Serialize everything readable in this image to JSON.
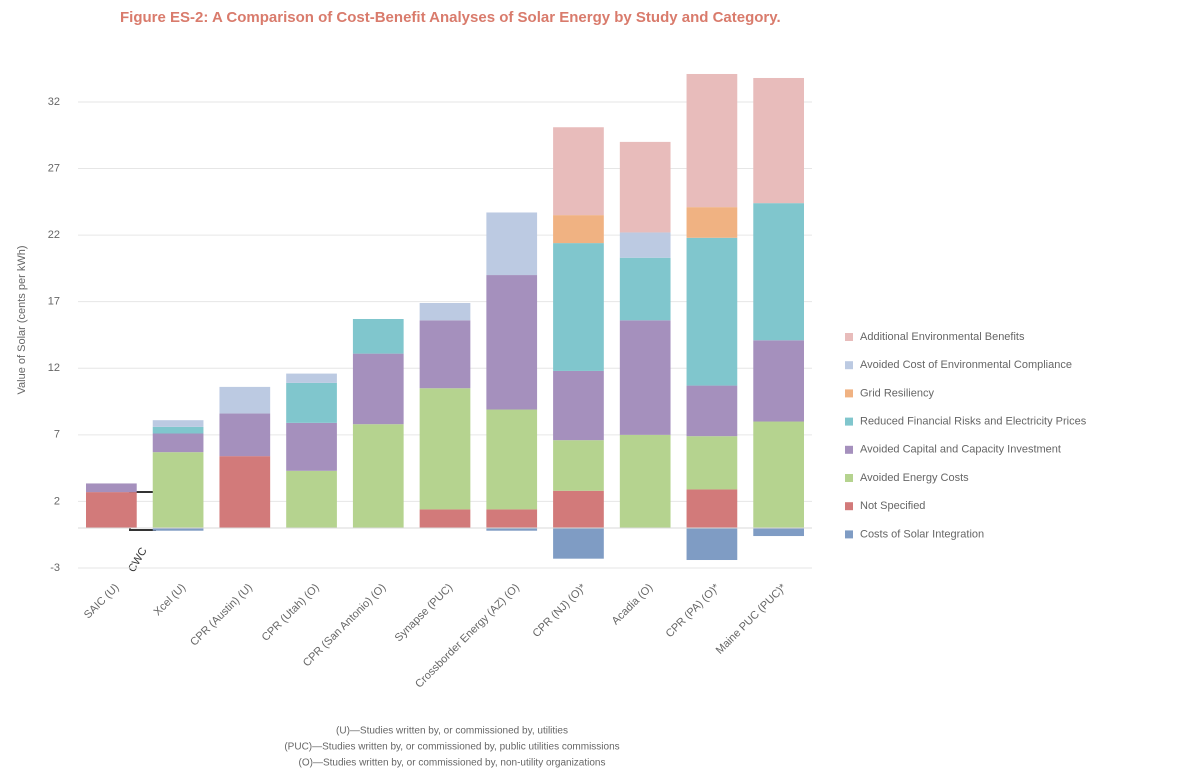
{
  "chart_data": {
    "type": "stacked_bar",
    "title": "Figure ES-2: A Comparison of Cost-Benefit Analyses of Solar Energy by Study and Category.",
    "y_label": "Value of Solar (cents per kWh)",
    "annotation": "CWC",
    "footnotes": [
      "(U)—Studies written by, or commissioned by, utilities",
      "(PUC)—Studies written by, or commissioned by, public utilities commissions",
      "(O)—Studies written by, or commissioned by, non-utility organizations"
    ],
    "categories": [
      "SAIC (U)",
      "Xcel (U)",
      "CPR (Austin) (U)",
      "CPR (Utah) (O)",
      "CPR (San Antonio) (O)",
      "Synapse (PUC)",
      "Crossborder Energy (AZ) (O)",
      "CPR (NJ) (O)*",
      "Acadia (O)",
      "CPR (PA) (O)*",
      "Maine PUC (PUC)*"
    ],
    "series": [
      {
        "name": "Costs of Solar Integration",
        "color": "#7f9cc4",
        "values": [
          0,
          -0.2,
          0,
          0,
          0,
          0,
          -0.2,
          -2.3,
          0,
          -2.4,
          -0.6
        ]
      },
      {
        "name": "Not Specified",
        "color": "#d27a7a",
        "values": [
          2.7,
          0,
          5.4,
          0,
          0,
          1.4,
          1.4,
          2.8,
          0,
          2.9,
          0
        ]
      },
      {
        "name": "Avoided Energy Costs",
        "color": "#b5d38f",
        "values": [
          0,
          5.7,
          0,
          4.3,
          7.8,
          9.1,
          7.5,
          3.8,
          7.0,
          4.0,
          8.0
        ]
      },
      {
        "name": "Avoided Capital and Capacity Investment",
        "color": "#a590bd",
        "values": [
          0.65,
          1.4,
          3.2,
          3.6,
          5.3,
          5.1,
          10.1,
          5.2,
          8.6,
          3.8,
          6.1
        ]
      },
      {
        "name": "Reduced Financial Risks and Electricity Prices",
        "color": "#80c6cd",
        "values": [
          0,
          0.5,
          0,
          3.0,
          2.6,
          0,
          0,
          9.6,
          4.7,
          11.1,
          10.3
        ]
      },
      {
        "name": "Grid Resiliency",
        "color": "#f0b282",
        "values": [
          0,
          0,
          0,
          0,
          0,
          0,
          0,
          2.1,
          0,
          2.3,
          0
        ]
      },
      {
        "name": "Avoided Cost of Environmental Compliance",
        "color": "#bccae2",
        "values": [
          0,
          0.5,
          2.0,
          0.7,
          0,
          1.3,
          4.7,
          0,
          1.9,
          0,
          0
        ]
      },
      {
        "name": "Additional Environmental Benefits",
        "color": "#e8bcbb",
        "values": [
          0,
          0,
          0,
          0,
          0,
          0,
          0,
          6.6,
          6.8,
          10.0,
          9.4
        ]
      }
    ],
    "ylim": [
      -3,
      35
    ],
    "yticks": [
      -3,
      2,
      7,
      12,
      17,
      22,
      27,
      32
    ],
    "grid": true
  }
}
